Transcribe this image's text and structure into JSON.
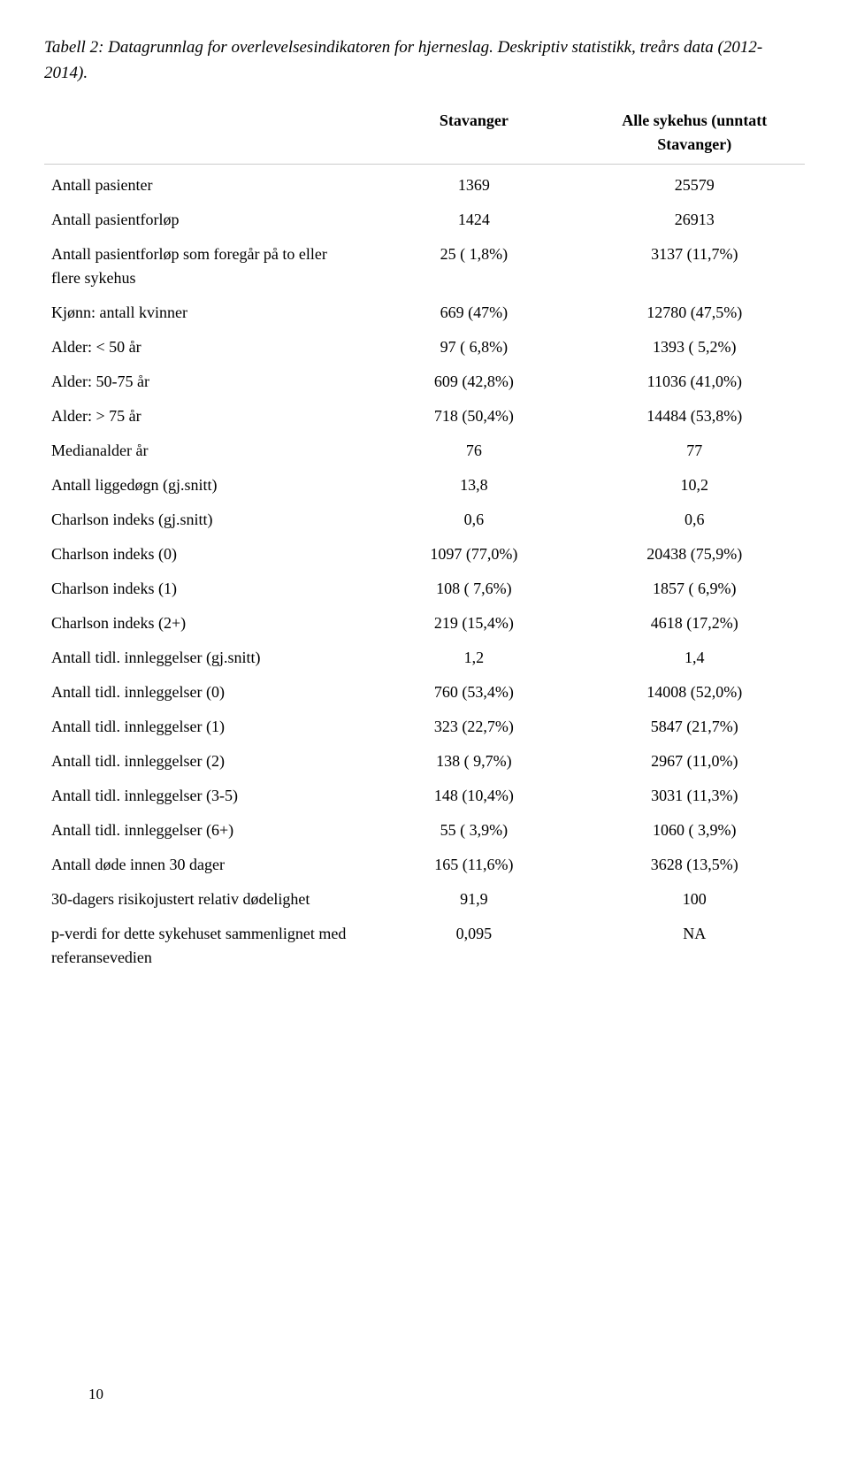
{
  "caption": "Tabell 2: Datagrunnlag for overlevelsesindikatoren for hjerneslag. Deskriptiv statistikk, treårs data (2012-2014).",
  "headers": {
    "label": "",
    "col1": "Stavanger",
    "col2": "Alle sykehus (unntatt Stavanger)"
  },
  "rows": [
    {
      "label": "Antall pasienter",
      "c1": "1369",
      "c2": "25579"
    },
    {
      "label": "Antall pasientforløp",
      "c1": "1424",
      "c2": "26913"
    },
    {
      "label": "Antall pasientforløp som foregår på to eller flere sykehus",
      "c1": "25 ( 1,8%)",
      "c2": "3137 (11,7%)"
    },
    {
      "label": "Kjønn: antall kvinner",
      "c1": "669 (47%)",
      "c2": "12780 (47,5%)"
    },
    {
      "label": "Alder: < 50 år",
      "c1": "97 ( 6,8%)",
      "c2": "1393 ( 5,2%)"
    },
    {
      "label": "Alder: 50-75 år",
      "c1": "609 (42,8%)",
      "c2": "11036 (41,0%)"
    },
    {
      "label": "Alder: > 75 år",
      "c1": "718 (50,4%)",
      "c2": "14484 (53,8%)"
    },
    {
      "label": "Medianalder år",
      "c1": "76",
      "c2": "77"
    },
    {
      "label": "Antall liggedøgn (gj.snitt)",
      "c1": "13,8",
      "c2": "10,2"
    },
    {
      "label": "Charlson indeks (gj.snitt)",
      "c1": "0,6",
      "c2": "0,6"
    },
    {
      "label": "Charlson indeks (0)",
      "c1": "1097 (77,0%)",
      "c2": "20438 (75,9%)"
    },
    {
      "label": "Charlson indeks (1)",
      "c1": "108 ( 7,6%)",
      "c2": "1857 ( 6,9%)"
    },
    {
      "label": "Charlson indeks (2+)",
      "c1": "219 (15,4%)",
      "c2": "4618 (17,2%)"
    },
    {
      "label": "Antall tidl. innleggelser (gj.snitt)",
      "c1": "1,2",
      "c2": "1,4"
    },
    {
      "label": "Antall tidl. innleggelser (0)",
      "c1": "760 (53,4%)",
      "c2": "14008 (52,0%)"
    },
    {
      "label": "Antall tidl. innleggelser (1)",
      "c1": "323 (22,7%)",
      "c2": "5847 (21,7%)"
    },
    {
      "label": "Antall tidl. innleggelser (2)",
      "c1": "138 ( 9,7%)",
      "c2": "2967 (11,0%)"
    },
    {
      "label": "Antall tidl. innleggelser (3-5)",
      "c1": "148 (10,4%)",
      "c2": "3031 (11,3%)"
    },
    {
      "label": "Antall tidl. innleggelser (6+)",
      "c1": "55 ( 3,9%)",
      "c2": "1060 ( 3,9%)"
    },
    {
      "label": "Antall døde innen 30 dager",
      "c1": "165 (11,6%)",
      "c2": "3628 (13,5%)"
    },
    {
      "label": "30-dagers risikojustert relativ dødelighet",
      "c1": "91,9",
      "c2": "100"
    },
    {
      "label": "p-verdi for dette sykehuset sammenlignet med referansevedien",
      "c1": "0,095",
      "c2": "NA"
    }
  ],
  "pageNumber": "10"
}
